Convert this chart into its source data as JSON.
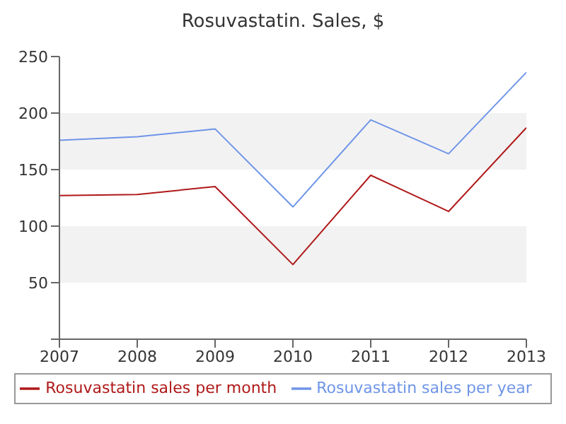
{
  "chart_data": {
    "type": "line",
    "title": "Rosuvastatin. Sales, $",
    "x": [
      2007,
      2008,
      2009,
      2010,
      2011,
      2012,
      2013
    ],
    "xlim": [
      2007,
      2013
    ],
    "xticks": [
      2007,
      2008,
      2009,
      2010,
      2011,
      2012,
      2013
    ],
    "ylim": [
      0,
      250
    ],
    "yticks": [
      {
        "value": 0,
        "label": null
      },
      50,
      100,
      150,
      200,
      250
    ],
    "series": [
      {
        "name": "Rosuvastatin sales per year",
        "color": "#6f95e8",
        "values": [
          176,
          179,
          186,
          117,
          194,
          164,
          236
        ]
      },
      {
        "name": "Rosuvastatin sales per month",
        "color": "#b01818",
        "values": [
          127,
          128,
          135,
          66,
          145,
          113,
          187
        ]
      }
    ],
    "bands": [
      {
        "axis": "y",
        "from": 50,
        "to": 100,
        "color": "#f2f2f2"
      },
      {
        "axis": "y",
        "from": 150,
        "to": 200,
        "color": "#f2f2f2"
      }
    ],
    "legend": "bottom",
    "marker": "none",
    "line_style": "solid"
  }
}
